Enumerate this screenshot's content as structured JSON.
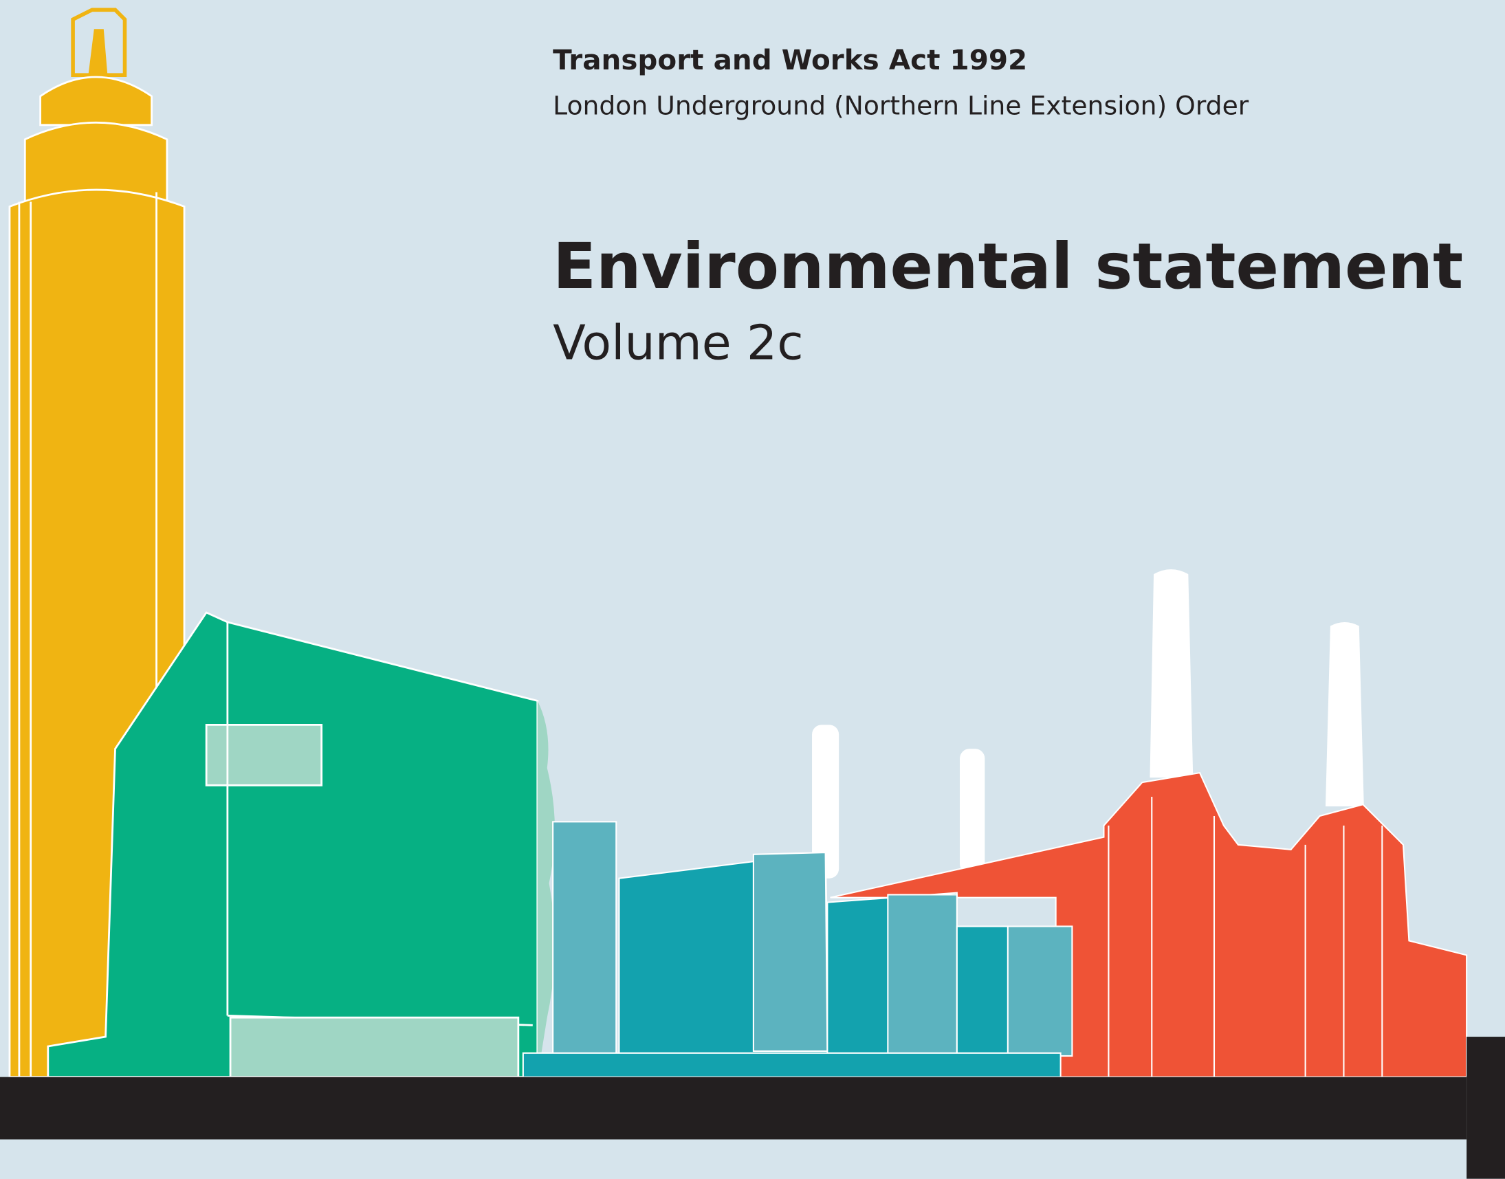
{
  "header": {
    "act": "Transport and Works Act 1992",
    "order": "London Underground (Northern Line Extension) Order"
  },
  "title": "Environmental statement",
  "subtitle": "Volume 2c"
}
